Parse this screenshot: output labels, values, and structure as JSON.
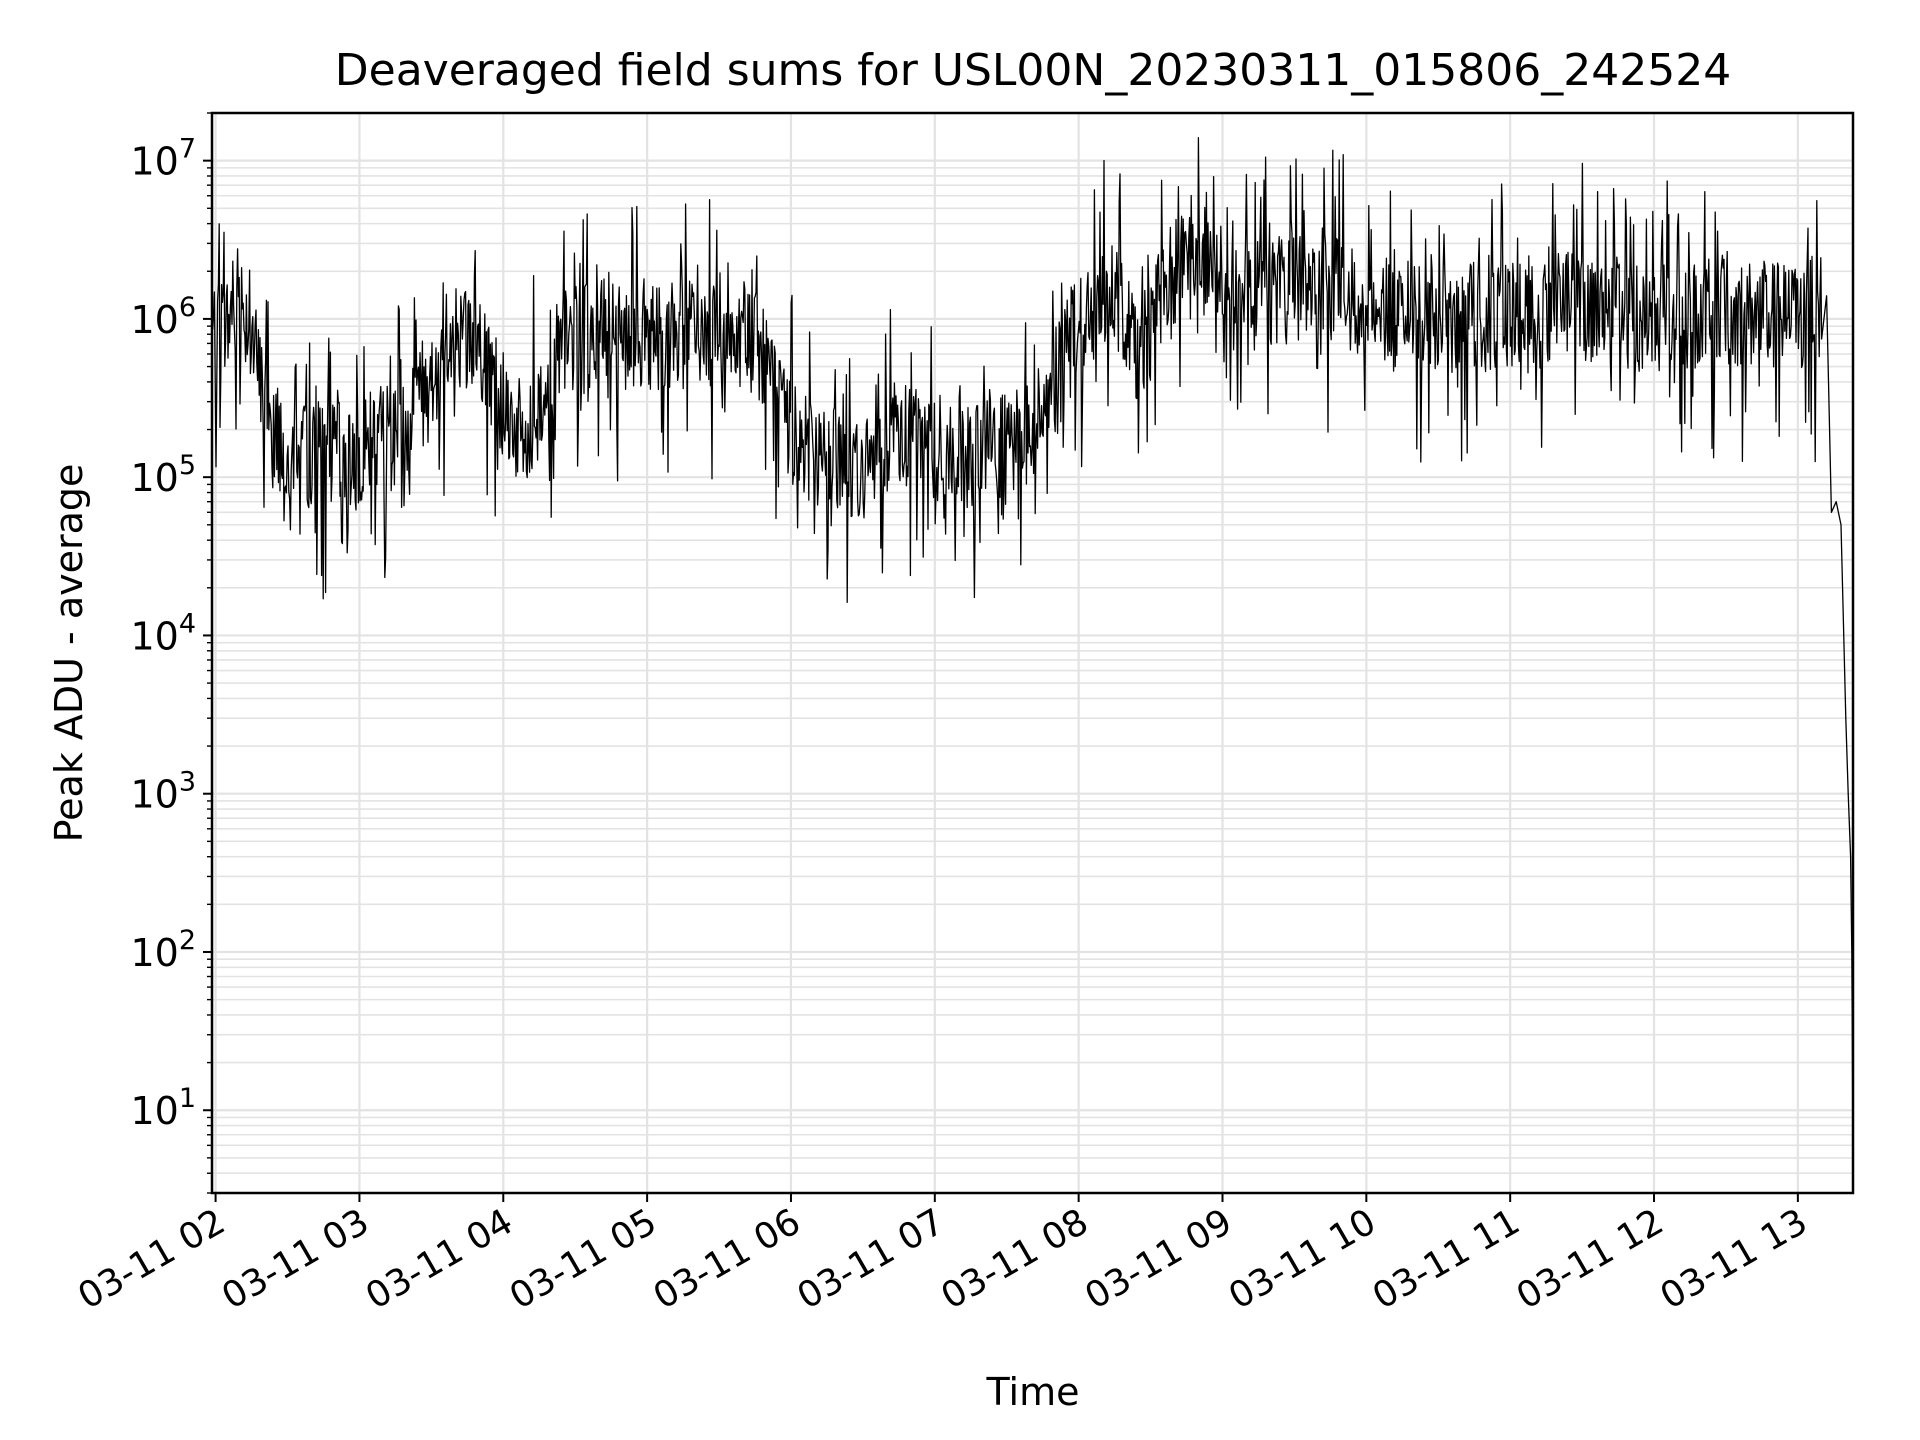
{
  "chart_data": {
    "type": "line",
    "title": "Deaveraged field sums for USL00N_20230311_015806_242524",
    "xlabel": "Time",
    "ylabel": "Peak ADU - average",
    "y_scale": "log",
    "ylim": [
      3,
      20000000
    ],
    "xlim": [
      "2023-03-11 01:58:30",
      "2023-03-11 13:23:00"
    ],
    "grid": true,
    "legend": "none",
    "x_ticks": [
      {
        "x": "2023-03-11 02:00",
        "label": "03-11 02"
      },
      {
        "x": "2023-03-11 03:00",
        "label": "03-11 03"
      },
      {
        "x": "2023-03-11 04:00",
        "label": "03-11 04"
      },
      {
        "x": "2023-03-11 05:00",
        "label": "03-11 05"
      },
      {
        "x": "2023-03-11 06:00",
        "label": "03-11 06"
      },
      {
        "x": "2023-03-11 07:00",
        "label": "03-11 07"
      },
      {
        "x": "2023-03-11 08:00",
        "label": "03-11 08"
      },
      {
        "x": "2023-03-11 09:00",
        "label": "03-11 09"
      },
      {
        "x": "2023-03-11 10:00",
        "label": "03-11 10"
      },
      {
        "x": "2023-03-11 11:00",
        "label": "03-11 11"
      },
      {
        "x": "2023-03-11 12:00",
        "label": "03-11 12"
      },
      {
        "x": "2023-03-11 13:00",
        "label": "03-11 13"
      }
    ],
    "y_ticks": [
      {
        "value": 10,
        "base": "10",
        "exp": "1"
      },
      {
        "value": 100,
        "base": "10",
        "exp": "2"
      },
      {
        "value": 1000,
        "base": "10",
        "exp": "3"
      },
      {
        "value": 10000,
        "base": "10",
        "exp": "4"
      },
      {
        "value": 100000,
        "base": "10",
        "exp": "5"
      },
      {
        "value": 1000000,
        "base": "10",
        "exp": "6"
      },
      {
        "value": 10000000,
        "base": "10",
        "exp": "7"
      }
    ],
    "series": [
      {
        "color": "#000000",
        "envelope": {
          "x": [
            "2023-03-11 01:58:30",
            "2023-03-11 02:05",
            "2023-03-11 02:10",
            "2023-03-11 02:15",
            "2023-03-11 02:20",
            "2023-03-11 02:25",
            "2023-03-11 02:30",
            "2023-03-11 02:40",
            "2023-03-11 02:50",
            "2023-03-11 03:00",
            "2023-03-11 03:15",
            "2023-03-11 03:30",
            "2023-03-11 03:40",
            "2023-03-11 03:50",
            "2023-03-11 04:00",
            "2023-03-11 04:10",
            "2023-03-11 04:15",
            "2023-03-11 04:25",
            "2023-03-11 04:40",
            "2023-03-11 05:00",
            "2023-03-11 05:20",
            "2023-03-11 05:40",
            "2023-03-11 05:50",
            "2023-03-11 06:00",
            "2023-03-11 06:15",
            "2023-03-11 06:30",
            "2023-03-11 06:45",
            "2023-03-11 07:00",
            "2023-03-11 07:15",
            "2023-03-11 07:30",
            "2023-03-11 07:45",
            "2023-03-11 08:00",
            "2023-03-11 08:15",
            "2023-03-11 08:25",
            "2023-03-11 08:40",
            "2023-03-11 09:00",
            "2023-03-11 09:20",
            "2023-03-11 09:40",
            "2023-03-11 10:00",
            "2023-03-11 10:30",
            "2023-03-11 11:00",
            "2023-03-11 11:30",
            "2023-03-11 12:00",
            "2023-03-11 12:30",
            "2023-03-11 13:00",
            "2023-03-11 13:10",
            "2023-03-11 13:12",
            "2023-03-11 13:14",
            "2023-03-11 13:16",
            "2023-03-11 13:18",
            "2023-03-11 13:20",
            "2023-03-11 13:21",
            "2023-03-11 13:22",
            "2023-03-11 13:22:30",
            "2023-03-11 13:23"
          ],
          "y": [
            800000,
            900000,
            1500000,
            800000,
            300000,
            200000,
            150000,
            140000,
            130000,
            150000,
            180000,
            400000,
            800000,
            700000,
            300000,
            150000,
            300000,
            700000,
            800000,
            800000,
            800000,
            800000,
            500000,
            200000,
            130000,
            100000,
            200000,
            150000,
            130000,
            150000,
            250000,
            900000,
            1500000,
            600000,
            2000000,
            2000000,
            1500000,
            1800000,
            1200000,
            1000000,
            1000000,
            1200000,
            1000000,
            1100000,
            1000000,
            1200000,
            1400000,
            60000,
            70000,
            50000,
            3000,
            1000,
            400,
            100,
            5
          ]
        }
      }
    ]
  }
}
